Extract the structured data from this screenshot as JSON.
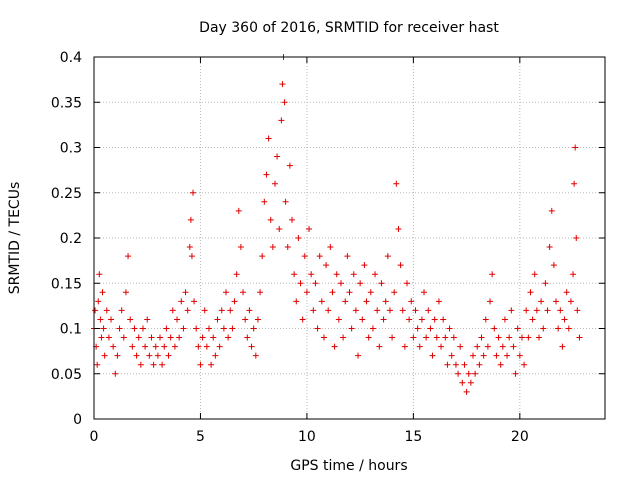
{
  "chart_data": {
    "type": "scatter",
    "title": "Day 360 of 2016, SRMTID for receiver hast",
    "xlabel": "GPS time / hours",
    "ylabel": "SRMTID / TECUs",
    "xlim": [
      0,
      24
    ],
    "ylim": [
      0,
      0.4
    ],
    "x_ticks": [
      "0",
      "5",
      "10",
      "15",
      "20"
    ],
    "y_ticks": [
      "0",
      "0.05",
      "0.1",
      "0.15",
      "0.2",
      "0.25",
      "0.3",
      "0.35",
      "0.4"
    ],
    "grid": true,
    "marker": "plus",
    "color": "#e00000",
    "series": [
      {
        "points": [
          [
            0.0,
            0.1
          ],
          [
            0.05,
            0.12
          ],
          [
            0.1,
            0.08
          ],
          [
            0.15,
            0.06
          ],
          [
            0.2,
            0.13
          ],
          [
            0.25,
            0.16
          ],
          [
            0.3,
            0.11
          ],
          [
            0.35,
            0.09
          ],
          [
            0.4,
            0.14
          ],
          [
            0.45,
            0.1
          ],
          [
            0.5,
            0.07
          ],
          [
            0.6,
            0.12
          ],
          [
            0.7,
            0.09
          ],
          [
            0.8,
            0.11
          ],
          [
            0.9,
            0.08
          ],
          [
            1.0,
            0.05
          ],
          [
            1.1,
            0.07
          ],
          [
            1.2,
            0.1
          ],
          [
            1.3,
            0.12
          ],
          [
            1.4,
            0.09
          ],
          [
            1.5,
            0.14
          ],
          [
            1.6,
            0.18
          ],
          [
            1.7,
            0.11
          ],
          [
            1.8,
            0.08
          ],
          [
            1.9,
            0.1
          ],
          [
            2.0,
            0.07
          ],
          [
            2.1,
            0.09
          ],
          [
            2.2,
            0.06
          ],
          [
            2.3,
            0.1
          ],
          [
            2.4,
            0.08
          ],
          [
            2.5,
            0.11
          ],
          [
            2.6,
            0.07
          ],
          [
            2.7,
            0.09
          ],
          [
            2.8,
            0.06
          ],
          [
            2.9,
            0.08
          ],
          [
            3.0,
            0.07
          ],
          [
            3.1,
            0.09
          ],
          [
            3.2,
            0.06
          ],
          [
            3.3,
            0.08
          ],
          [
            3.4,
            0.1
          ],
          [
            3.5,
            0.07
          ],
          [
            3.6,
            0.09
          ],
          [
            3.7,
            0.12
          ],
          [
            3.8,
            0.08
          ],
          [
            3.9,
            0.11
          ],
          [
            4.0,
            0.09
          ],
          [
            4.1,
            0.13
          ],
          [
            4.2,
            0.1
          ],
          [
            4.3,
            0.14
          ],
          [
            4.4,
            0.12
          ],
          [
            4.5,
            0.19
          ],
          [
            4.55,
            0.22
          ],
          [
            4.6,
            0.18
          ],
          [
            4.65,
            0.25
          ],
          [
            4.7,
            0.13
          ],
          [
            4.8,
            0.1
          ],
          [
            4.9,
            0.08
          ],
          [
            5.0,
            0.06
          ],
          [
            5.1,
            0.09
          ],
          [
            5.2,
            0.12
          ],
          [
            5.3,
            0.08
          ],
          [
            5.4,
            0.1
          ],
          [
            5.5,
            0.06
          ],
          [
            5.6,
            0.09
          ],
          [
            5.7,
            0.07
          ],
          [
            5.8,
            0.11
          ],
          [
            5.9,
            0.08
          ],
          [
            6.0,
            0.12
          ],
          [
            6.1,
            0.1
          ],
          [
            6.2,
            0.14
          ],
          [
            6.3,
            0.09
          ],
          [
            6.4,
            0.12
          ],
          [
            6.5,
            0.1
          ],
          [
            6.6,
            0.13
          ],
          [
            6.7,
            0.16
          ],
          [
            6.8,
            0.23
          ],
          [
            6.9,
            0.19
          ],
          [
            7.0,
            0.14
          ],
          [
            7.1,
            0.11
          ],
          [
            7.2,
            0.09
          ],
          [
            7.3,
            0.12
          ],
          [
            7.4,
            0.08
          ],
          [
            7.5,
            0.1
          ],
          [
            7.6,
            0.07
          ],
          [
            7.7,
            0.11
          ],
          [
            7.8,
            0.14
          ],
          [
            7.9,
            0.18
          ],
          [
            8.0,
            0.24
          ],
          [
            8.1,
            0.27
          ],
          [
            8.2,
            0.31
          ],
          [
            8.3,
            0.22
          ],
          [
            8.4,
            0.19
          ],
          [
            8.5,
            0.26
          ],
          [
            8.6,
            0.29
          ],
          [
            8.7,
            0.21
          ],
          [
            8.8,
            0.33
          ],
          [
            8.85,
            0.37
          ],
          [
            8.9,
            0.4
          ],
          [
            8.95,
            0.35
          ],
          [
            9.0,
            0.24
          ],
          [
            9.1,
            0.19
          ],
          [
            9.2,
            0.28
          ],
          [
            9.3,
            0.22
          ],
          [
            9.4,
            0.16
          ],
          [
            9.5,
            0.13
          ],
          [
            9.6,
            0.2
          ],
          [
            9.7,
            0.15
          ],
          [
            9.8,
            0.11
          ],
          [
            9.9,
            0.18
          ],
          [
            10.0,
            0.14
          ],
          [
            10.1,
            0.21
          ],
          [
            10.2,
            0.16
          ],
          [
            10.3,
            0.12
          ],
          [
            10.4,
            0.15
          ],
          [
            10.5,
            0.1
          ],
          [
            10.6,
            0.18
          ],
          [
            10.7,
            0.13
          ],
          [
            10.8,
            0.09
          ],
          [
            10.9,
            0.17
          ],
          [
            11.0,
            0.12
          ],
          [
            11.1,
            0.19
          ],
          [
            11.2,
            0.14
          ],
          [
            11.3,
            0.08
          ],
          [
            11.4,
            0.16
          ],
          [
            11.5,
            0.11
          ],
          [
            11.6,
            0.15
          ],
          [
            11.7,
            0.09
          ],
          [
            11.8,
            0.13
          ],
          [
            11.9,
            0.18
          ],
          [
            12.0,
            0.14
          ],
          [
            12.1,
            0.1
          ],
          [
            12.2,
            0.16
          ],
          [
            12.3,
            0.12
          ],
          [
            12.4,
            0.07
          ],
          [
            12.5,
            0.15
          ],
          [
            12.6,
            0.11
          ],
          [
            12.7,
            0.17
          ],
          [
            12.8,
            0.13
          ],
          [
            12.9,
            0.09
          ],
          [
            13.0,
            0.14
          ],
          [
            13.1,
            0.1
          ],
          [
            13.2,
            0.16
          ],
          [
            13.3,
            0.12
          ],
          [
            13.4,
            0.08
          ],
          [
            13.5,
            0.15
          ],
          [
            13.6,
            0.11
          ],
          [
            13.7,
            0.13
          ],
          [
            13.8,
            0.18
          ],
          [
            13.9,
            0.12
          ],
          [
            14.0,
            0.09
          ],
          [
            14.1,
            0.14
          ],
          [
            14.2,
            0.26
          ],
          [
            14.3,
            0.21
          ],
          [
            14.4,
            0.17
          ],
          [
            14.5,
            0.12
          ],
          [
            14.6,
            0.08
          ],
          [
            14.7,
            0.15
          ],
          [
            14.8,
            0.11
          ],
          [
            14.9,
            0.13
          ],
          [
            15.0,
            0.09
          ],
          [
            15.1,
            0.12
          ],
          [
            15.2,
            0.1
          ],
          [
            15.3,
            0.08
          ],
          [
            15.4,
            0.11
          ],
          [
            15.5,
            0.14
          ],
          [
            15.6,
            0.09
          ],
          [
            15.7,
            0.12
          ],
          [
            15.8,
            0.1
          ],
          [
            15.9,
            0.07
          ],
          [
            16.0,
            0.11
          ],
          [
            16.1,
            0.09
          ],
          [
            16.2,
            0.13
          ],
          [
            16.3,
            0.08
          ],
          [
            16.4,
            0.11
          ],
          [
            16.5,
            0.09
          ],
          [
            16.6,
            0.06
          ],
          [
            16.7,
            0.1
          ],
          [
            16.8,
            0.07
          ],
          [
            16.9,
            0.09
          ],
          [
            17.0,
            0.06
          ],
          [
            17.1,
            0.05
          ],
          [
            17.2,
            0.08
          ],
          [
            17.3,
            0.04
          ],
          [
            17.4,
            0.06
          ],
          [
            17.5,
            0.03
          ],
          [
            17.6,
            0.05
          ],
          [
            17.7,
            0.04
          ],
          [
            17.8,
            0.07
          ],
          [
            17.9,
            0.05
          ],
          [
            18.0,
            0.08
          ],
          [
            18.1,
            0.06
          ],
          [
            18.2,
            0.09
          ],
          [
            18.3,
            0.07
          ],
          [
            18.4,
            0.11
          ],
          [
            18.5,
            0.08
          ],
          [
            18.6,
            0.13
          ],
          [
            18.7,
            0.16
          ],
          [
            18.8,
            0.1
          ],
          [
            18.9,
            0.07
          ],
          [
            19.0,
            0.09
          ],
          [
            19.1,
            0.06
          ],
          [
            19.2,
            0.08
          ],
          [
            19.3,
            0.11
          ],
          [
            19.4,
            0.07
          ],
          [
            19.5,
            0.09
          ],
          [
            19.6,
            0.12
          ],
          [
            19.7,
            0.08
          ],
          [
            19.8,
            0.05
          ],
          [
            19.9,
            0.1
          ],
          [
            20.0,
            0.07
          ],
          [
            20.1,
            0.09
          ],
          [
            20.2,
            0.06
          ],
          [
            20.3,
            0.12
          ],
          [
            20.4,
            0.09
          ],
          [
            20.5,
            0.14
          ],
          [
            20.6,
            0.11
          ],
          [
            20.7,
            0.16
          ],
          [
            20.8,
            0.12
          ],
          [
            20.9,
            0.09
          ],
          [
            21.0,
            0.13
          ],
          [
            21.1,
            0.1
          ],
          [
            21.2,
            0.15
          ],
          [
            21.3,
            0.12
          ],
          [
            21.4,
            0.19
          ],
          [
            21.5,
            0.23
          ],
          [
            21.6,
            0.17
          ],
          [
            21.7,
            0.13
          ],
          [
            21.8,
            0.1
          ],
          [
            21.9,
            0.12
          ],
          [
            22.0,
            0.08
          ],
          [
            22.1,
            0.11
          ],
          [
            22.2,
            0.14
          ],
          [
            22.3,
            0.1
          ],
          [
            22.4,
            0.13
          ],
          [
            22.5,
            0.16
          ],
          [
            22.55,
            0.26
          ],
          [
            22.6,
            0.3
          ],
          [
            22.65,
            0.2
          ],
          [
            22.7,
            0.12
          ],
          [
            22.8,
            0.09
          ]
        ]
      }
    ]
  }
}
